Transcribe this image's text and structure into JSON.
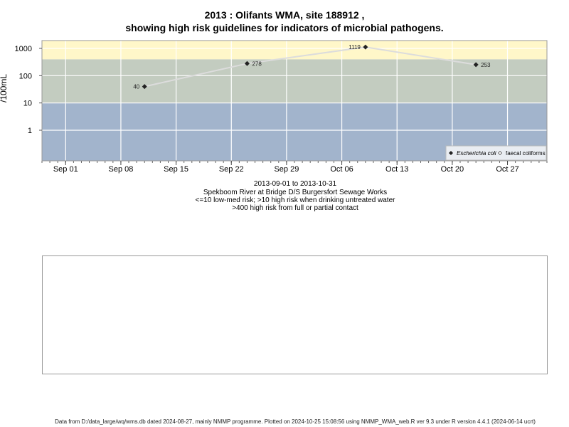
{
  "chart_data": {
    "type": "line",
    "title": "2013 : Olifants WMA, site 188912 ,",
    "subtitle": "showing high risk guidelines for indicators of microbial pathogens.",
    "ylabel": "/100mL",
    "yscale": "log",
    "yticks": [
      "1",
      "10",
      "100",
      "1000"
    ],
    "xticks": [
      "Sep 01",
      "Sep 08",
      "Sep 15",
      "Sep 22",
      "Sep 29",
      "Oct 06",
      "Oct 13",
      "Oct 20",
      "Oct 27"
    ],
    "xlim": [
      "2013-08-29",
      "2013-11-01"
    ],
    "bands": [
      {
        "from": 0,
        "to": 10,
        "color": "#a2b4cc"
      },
      {
        "from": 10,
        "to": 400,
        "color": "#c3ccc0"
      },
      {
        "from": 400,
        "to": 2000,
        "color": "#fff7c9"
      }
    ],
    "series": [
      {
        "name": "Escherichia coli",
        "marker": "filled-diamond",
        "color": "#dcdcdc",
        "x": [
          "2013-09-11",
          "2013-09-24",
          "2013-10-09",
          "2013-10-23"
        ],
        "y": [
          40,
          278,
          1119,
          253
        ],
        "labels": [
          "40",
          "278",
          "1119",
          "253"
        ]
      }
    ],
    "legend": {
      "position": "bottom-right",
      "entries": [
        "Escherichia coli",
        "faecal coliforms"
      ]
    },
    "grid": true
  },
  "captions": {
    "range": "2013-09-01 to 2013-10-31",
    "site": "Spekboom River at Bridge D/S Burgersfort Sewage Works",
    "guide1": "<=10 low-med risk; >10 high risk when drinking untreated water",
    "guide2": ">400 high risk from full or partial contact"
  },
  "footer": "Data from D:/data_large/wq/wms.db dated 2024-08-27, mainly NMMP programme. Plotted on 2024-10-25 15:08:56 using NMMP_WMA_web.R ver 9.3 under R version 4.4.1 (2024-06-14 ucrt)"
}
